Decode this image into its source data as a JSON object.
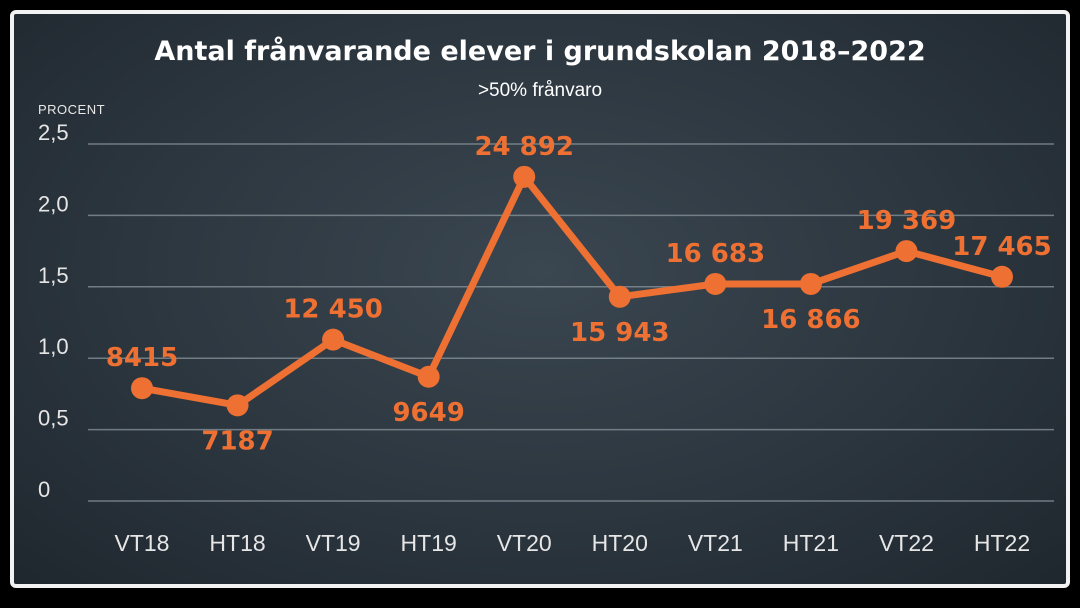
{
  "chart_data": {
    "type": "line",
    "title": "Antal frånvarande elever i grundskolan 2018–2022",
    "subtitle": ">50% frånvaro",
    "ylabel": "PROCENT",
    "xlabel": "",
    "categories": [
      "VT18",
      "HT18",
      "VT19",
      "HT19",
      "VT20",
      "HT20",
      "VT21",
      "HT21",
      "VT22",
      "HT22"
    ],
    "series": [
      {
        "values": [
          0.79,
          0.67,
          1.13,
          0.87,
          2.27,
          1.43,
          1.52,
          1.52,
          1.75,
          1.57
        ]
      }
    ],
    "data_labels": [
      "8415",
      "7187",
      "12 450",
      "9649",
      "24 892",
      "15 943",
      "16 683",
      "16 866",
      "19 369",
      "17 465"
    ],
    "y_ticks": [
      "0",
      "0,5",
      "1,0",
      "1,5",
      "2,0",
      "2,5"
    ],
    "ylim": [
      0,
      2.5
    ],
    "grid": true,
    "line_color": "#ee7032",
    "background_color": "#2c363f"
  }
}
